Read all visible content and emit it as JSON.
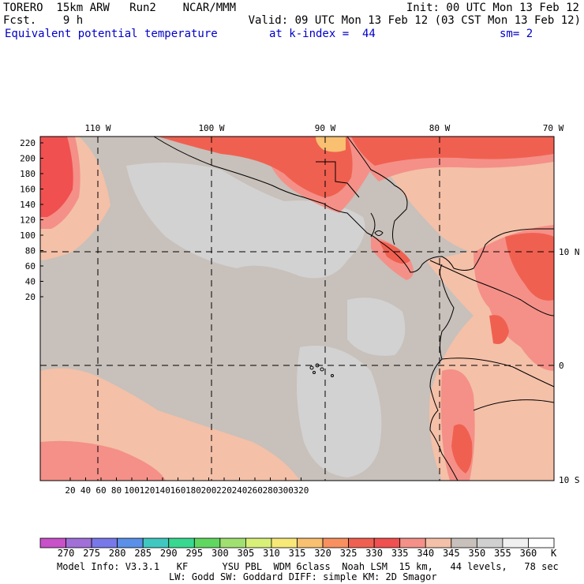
{
  "header": {
    "model": "TORERO  15km ARW   Run2    NCAR/MMM",
    "init": "Init: 00 UTC Mon 13 Feb 12",
    "fcst": "Fcst.    9 h",
    "valid": "Valid: 09 UTC Mon 13 Feb 12 (03 CST Mon 13 Feb 12)",
    "field": "Equivalent potential temperature",
    "level": "at k-index =  44",
    "smoothing": "sm= 2"
  },
  "map": {
    "lon_labels": [
      "110 W",
      "100 W",
      "90 W",
      "80 W",
      "70 W"
    ],
    "lat_labels": [
      "10 N",
      "0",
      "10 S"
    ],
    "y_ticks": [
      "220",
      "200",
      "180",
      "160",
      "140",
      "120",
      "100",
      "80",
      "60",
      "40",
      "20"
    ],
    "x_ticks": [
      "20",
      "40",
      "60",
      "80",
      "100",
      "120",
      "140",
      "160",
      "180",
      "200",
      "220",
      "240",
      "260",
      "280",
      "300",
      "320"
    ],
    "background_value_color": "#c8c0ba"
  },
  "colorbar": {
    "labels": [
      "270",
      "275",
      "280",
      "285",
      "290",
      "295",
      "300",
      "305",
      "310",
      "315",
      "320",
      "325",
      "330",
      "335",
      "340",
      "345",
      "350",
      "355",
      "360"
    ],
    "unit": "K",
    "colors": [
      "#c850c8",
      "#a070d8",
      "#7878e8",
      "#5a90e8",
      "#40c8c0",
      "#38d890",
      "#60d860",
      "#a0e070",
      "#d8f078",
      "#f8e878",
      "#f8c070",
      "#f89060",
      "#f06050",
      "#f05050",
      "#f49088",
      "#f4c0a8",
      "#c8c0ba",
      "#d0d0d0",
      "#f0f0f0",
      "#ffffff"
    ]
  },
  "footer": {
    "line1": "Model Info: V3.3.1   KF      YSU PBL  WDM 6class  Noah LSM  15 km,   44 levels,   78 sec",
    "line2": "LW: Godd SW: Goddard DIFF: simple KM: 2D Smagor"
  }
}
